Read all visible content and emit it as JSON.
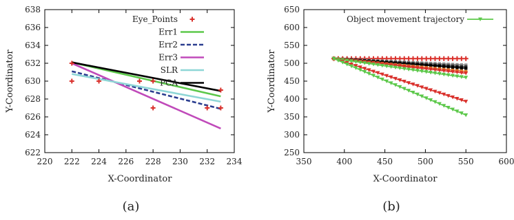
{
  "chart_data": [
    {
      "type": "line",
      "caption": "(a)",
      "xlabel": "X-Coordinator",
      "ylabel": "Y-Coordinator",
      "xlim": [
        220,
        234
      ],
      "ylim": [
        622,
        638
      ],
      "xticks": [
        220,
        222,
        224,
        226,
        228,
        230,
        232,
        234
      ],
      "yticks": [
        622,
        624,
        626,
        628,
        630,
        632,
        634,
        636,
        638
      ],
      "grid": false,
      "legend_position": "top-right",
      "points": {
        "name": "Eye_Points",
        "color": "#d9302b",
        "x": [
          222,
          222,
          224,
          227,
          228,
          228,
          232,
          233,
          233
        ],
        "y": [
          632,
          630,
          630,
          630,
          630,
          627,
          627,
          627,
          629
        ]
      },
      "series": [
        {
          "name": "Err1",
          "color": "#5cc84a",
          "dash": "solid",
          "x": [
            222,
            233
          ],
          "y": [
            632.1,
            628.3
          ]
        },
        {
          "name": "Err2",
          "color": "#2a3d8f",
          "dash": "dashed",
          "x": [
            222,
            233
          ],
          "y": [
            631.1,
            626.9
          ]
        },
        {
          "name": "Err3",
          "color": "#c04aba",
          "dash": "solid",
          "x": [
            222,
            233
          ],
          "y": [
            632.0,
            624.7
          ]
        },
        {
          "name": "SLR",
          "color": "#8ed6d6",
          "dash": "solid",
          "x": [
            222,
            233
          ],
          "y": [
            630.8,
            627.7
          ]
        },
        {
          "name": "PCA",
          "color": "#000000",
          "dash": "solid",
          "x": [
            222,
            233
          ],
          "y": [
            632.1,
            628.9
          ]
        }
      ]
    },
    {
      "type": "line",
      "caption": "(b)",
      "xlabel": "X-Coordinator",
      "ylabel": "Y-Coordinator",
      "xlim": [
        350,
        600
      ],
      "ylim": [
        250,
        650
      ],
      "xticks": [
        350,
        400,
        450,
        500,
        550,
        600
      ],
      "yticks": [
        250,
        300,
        350,
        400,
        450,
        500,
        550,
        600,
        650
      ],
      "grid": false,
      "legend_position": "top-right",
      "legend_entry": "Object movement trajectory",
      "start": [
        387,
        513
      ],
      "end_x": 550,
      "steps": 30,
      "series": [
        {
          "color": "#d9302b",
          "marker": "plus",
          "end_y": 513
        },
        {
          "color": "#8a8a8a",
          "marker": "square",
          "end_y": 495
        },
        {
          "color": "#333333",
          "marker": "square",
          "end_y": 490
        },
        {
          "color": "#000000",
          "marker": "square",
          "end_y": 486
        },
        {
          "color": "#e07a2a",
          "marker": "square",
          "end_y": 477
        },
        {
          "color": "#d9302b",
          "marker": "triangle",
          "end_y": 472
        },
        {
          "color": "#5cc84a",
          "marker": "triangle",
          "end_y": 460
        },
        {
          "color": "#d9302b",
          "marker": "triangle",
          "end_y": 393
        },
        {
          "color": "#5cc84a",
          "marker": "triangle",
          "end_y": 355
        }
      ]
    }
  ]
}
